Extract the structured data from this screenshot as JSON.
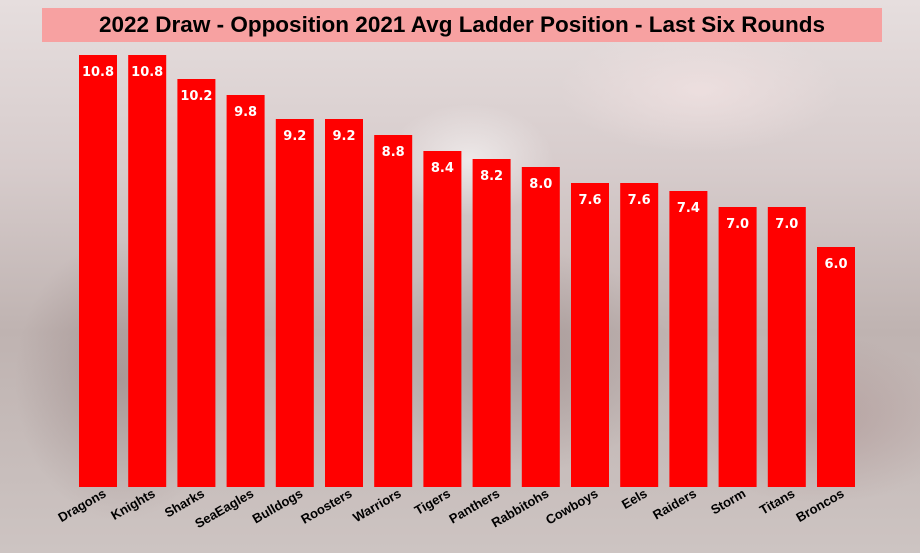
{
  "title": "2022 Draw - Opposition 2021 Avg Ladder Position - Last Six Rounds",
  "colors": {
    "bar": "#ff0000",
    "title_background": "#f7a1a1",
    "value_label": "#ffffff",
    "category_label": "#000000"
  },
  "chart_data": {
    "type": "bar",
    "categories": [
      "Dragons",
      "Knights",
      "Sharks",
      "SeaEagles",
      "Bulldogs",
      "Roosters",
      "Warriors",
      "Tigers",
      "Panthers",
      "Rabbitohs",
      "Cowboys",
      "Eels",
      "Raiders",
      "Storm",
      "Titans",
      "Broncos"
    ],
    "values": [
      10.8,
      10.8,
      10.2,
      9.8,
      9.2,
      9.2,
      8.8,
      8.4,
      8.2,
      8.0,
      7.6,
      7.6,
      7.4,
      7.0,
      7.0,
      6.0
    ],
    "value_labels": [
      "10.8",
      "10.8",
      "10.2",
      "9.8",
      "9.2",
      "9.2",
      "8.8",
      "8.4",
      "8.2",
      "8.0",
      "7.6",
      "7.6",
      "7.4",
      "7.0",
      "7.0",
      "6.0"
    ],
    "title": "2022 Draw - Opposition 2021 Avg Ladder Position - Last Six Rounds",
    "xlabel": "",
    "ylabel": "",
    "ylim": [
      0,
      10.8
    ],
    "grid": false,
    "legend": "none"
  }
}
